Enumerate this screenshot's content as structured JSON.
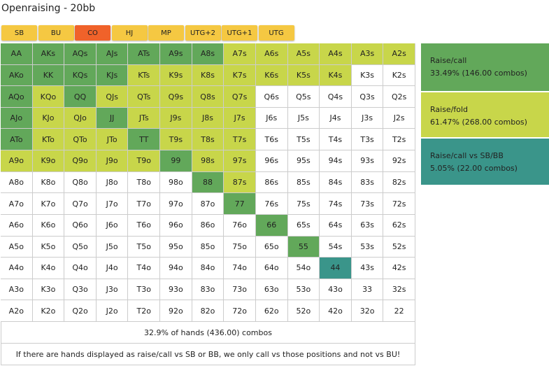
{
  "header": {
    "title": "Openraising - 20bb"
  },
  "tabs": [
    {
      "label": "SB",
      "color": "#f5c842"
    },
    {
      "label": "BU",
      "color": "#f5c842"
    },
    {
      "label": "CO",
      "color": "#f0622a"
    },
    {
      "label": "HJ",
      "color": "#f5c842"
    },
    {
      "label": "MP",
      "color": "#f5c842"
    },
    {
      "label": "UTG+2",
      "color": "#f5c842"
    },
    {
      "label": "UTG+1",
      "color": "#f5c842"
    },
    {
      "label": "UTG",
      "color": "#f5c842"
    }
  ],
  "grid": {
    "rows": [
      [
        "AA",
        "AKs",
        "AQs",
        "AJs",
        "ATs",
        "A9s",
        "A8s",
        "A7s",
        "A6s",
        "A5s",
        "A4s",
        "A3s",
        "A2s"
      ],
      [
        "AKo",
        "KK",
        "KQs",
        "KJs",
        "KTs",
        "K9s",
        "K8s",
        "K7s",
        "K6s",
        "K5s",
        "K4s",
        "K3s",
        "K2s"
      ],
      [
        "AQo",
        "KQo",
        "QQ",
        "QJs",
        "QTs",
        "Q9s",
        "Q8s",
        "Q7s",
        "Q6s",
        "Q5s",
        "Q4s",
        "Q3s",
        "Q2s"
      ],
      [
        "AJo",
        "KJo",
        "QJo",
        "JJ",
        "JTs",
        "J9s",
        "J8s",
        "J7s",
        "J6s",
        "J5s",
        "J4s",
        "J3s",
        "J2s"
      ],
      [
        "ATo",
        "KTo",
        "QTo",
        "JTo",
        "TT",
        "T9s",
        "T8s",
        "T7s",
        "T6s",
        "T5s",
        "T4s",
        "T3s",
        "T2s"
      ],
      [
        "A9o",
        "K9o",
        "Q9o",
        "J9o",
        "T9o",
        "99",
        "98s",
        "97s",
        "96s",
        "95s",
        "94s",
        "93s",
        "92s"
      ],
      [
        "A8o",
        "K8o",
        "Q8o",
        "J8o",
        "T8o",
        "98o",
        "88",
        "87s",
        "86s",
        "85s",
        "84s",
        "83s",
        "82s"
      ],
      [
        "A7o",
        "K7o",
        "Q7o",
        "J7o",
        "T7o",
        "97o",
        "87o",
        "77",
        "76s",
        "75s",
        "74s",
        "73s",
        "72s"
      ],
      [
        "A6o",
        "K6o",
        "Q6o",
        "J6o",
        "T6o",
        "96o",
        "86o",
        "76o",
        "66",
        "65s",
        "64s",
        "63s",
        "62s"
      ],
      [
        "A5o",
        "K5o",
        "Q5o",
        "J5o",
        "T5o",
        "95o",
        "85o",
        "75o",
        "65o",
        "55",
        "54s",
        "53s",
        "52s"
      ],
      [
        "A4o",
        "K4o",
        "Q4o",
        "J4o",
        "T4o",
        "94o",
        "84o",
        "74o",
        "64o",
        "54o",
        "44",
        "43s",
        "42s"
      ],
      [
        "A3o",
        "K3o",
        "Q3o",
        "J3o",
        "T3o",
        "93o",
        "83o",
        "73o",
        "63o",
        "53o",
        "43o",
        "33",
        "32s"
      ],
      [
        "A2o",
        "K2o",
        "Q2o",
        "J2o",
        "T2o",
        "92o",
        "82o",
        "72o",
        "62o",
        "52o",
        "42o",
        "32o",
        "22"
      ]
    ],
    "colors": [
      [
        "#62a85a",
        "#62a85a",
        "#62a85a",
        "#62a85a",
        "#62a85a",
        "#62a85a",
        "#62a85a",
        "#c8d64a",
        "#c8d64a",
        "#c8d64a",
        "#c8d64a",
        "#c8d64a",
        "#c8d64a"
      ],
      [
        "#62a85a",
        "#62a85a",
        "#62a85a",
        "#62a85a",
        "#c8d64a",
        "#c8d64a",
        "#c8d64a",
        "#c8d64a",
        "#c8d64a",
        "#c8d64a",
        "#c8d64a",
        "#ffffff",
        "#ffffff"
      ],
      [
        "#62a85a",
        "#c8d64a",
        "#62a85a",
        "#c8d64a",
        "#c8d64a",
        "#c8d64a",
        "#c8d64a",
        "#c8d64a",
        "#ffffff",
        "#ffffff",
        "#ffffff",
        "#ffffff",
        "#ffffff"
      ],
      [
        "#62a85a",
        "#c8d64a",
        "#c8d64a",
        "#62a85a",
        "#c8d64a",
        "#c8d64a",
        "#c8d64a",
        "#c8d64a",
        "#ffffff",
        "#ffffff",
        "#ffffff",
        "#ffffff",
        "#ffffff"
      ],
      [
        "#62a85a",
        "#c8d64a",
        "#c8d64a",
        "#c8d64a",
        "#62a85a",
        "#c8d64a",
        "#c8d64a",
        "#c8d64a",
        "#ffffff",
        "#ffffff",
        "#ffffff",
        "#ffffff",
        "#ffffff"
      ],
      [
        "#c8d64a",
        "#c8d64a",
        "#c8d64a",
        "#c8d64a",
        "#c8d64a",
        "#62a85a",
        "#c8d64a",
        "#c8d64a",
        "#ffffff",
        "#ffffff",
        "#ffffff",
        "#ffffff",
        "#ffffff"
      ],
      [
        "#ffffff",
        "#ffffff",
        "#ffffff",
        "#ffffff",
        "#ffffff",
        "#ffffff",
        "#62a85a",
        "#c8d64a",
        "#ffffff",
        "#ffffff",
        "#ffffff",
        "#ffffff",
        "#ffffff"
      ],
      [
        "#ffffff",
        "#ffffff",
        "#ffffff",
        "#ffffff",
        "#ffffff",
        "#ffffff",
        "#ffffff",
        "#62a85a",
        "#ffffff",
        "#ffffff",
        "#ffffff",
        "#ffffff",
        "#ffffff"
      ],
      [
        "#ffffff",
        "#ffffff",
        "#ffffff",
        "#ffffff",
        "#ffffff",
        "#ffffff",
        "#ffffff",
        "#ffffff",
        "#62a85a",
        "#ffffff",
        "#ffffff",
        "#ffffff",
        "#ffffff"
      ],
      [
        "#ffffff",
        "#ffffff",
        "#ffffff",
        "#ffffff",
        "#ffffff",
        "#ffffff",
        "#ffffff",
        "#ffffff",
        "#ffffff",
        "#62a85a",
        "#ffffff",
        "#ffffff",
        "#ffffff"
      ],
      [
        "#ffffff",
        "#ffffff",
        "#ffffff",
        "#ffffff",
        "#ffffff",
        "#ffffff",
        "#ffffff",
        "#ffffff",
        "#ffffff",
        "#ffffff",
        "#3a958a",
        "#ffffff",
        "#ffffff"
      ],
      [
        "#ffffff",
        "#ffffff",
        "#ffffff",
        "#ffffff",
        "#ffffff",
        "#ffffff",
        "#ffffff",
        "#ffffff",
        "#ffffff",
        "#ffffff",
        "#ffffff",
        "#ffffff",
        "#ffffff"
      ],
      [
        "#ffffff",
        "#ffffff",
        "#ffffff",
        "#ffffff",
        "#ffffff",
        "#ffffff",
        "#ffffff",
        "#ffffff",
        "#ffffff",
        "#ffffff",
        "#ffffff",
        "#ffffff",
        "#ffffff"
      ]
    ]
  },
  "legend": [
    {
      "name": "Raise/call",
      "detail": "33.49% (146.00 combos)",
      "color": "#62a85a"
    },
    {
      "name": "Raise/fold",
      "detail": "61.47% (268.00 combos)",
      "color": "#c8d64a"
    },
    {
      "name": "Raise/call vs SB/BB",
      "detail": "5.05% (22.00 combos)",
      "color": "#3a958a"
    }
  ],
  "footer": {
    "summary": "32.9% of hands (436.00) combos",
    "note": "If there are hands displayed as raise/call vs SB or BB, we only call vs those positions and not vs BU!"
  }
}
